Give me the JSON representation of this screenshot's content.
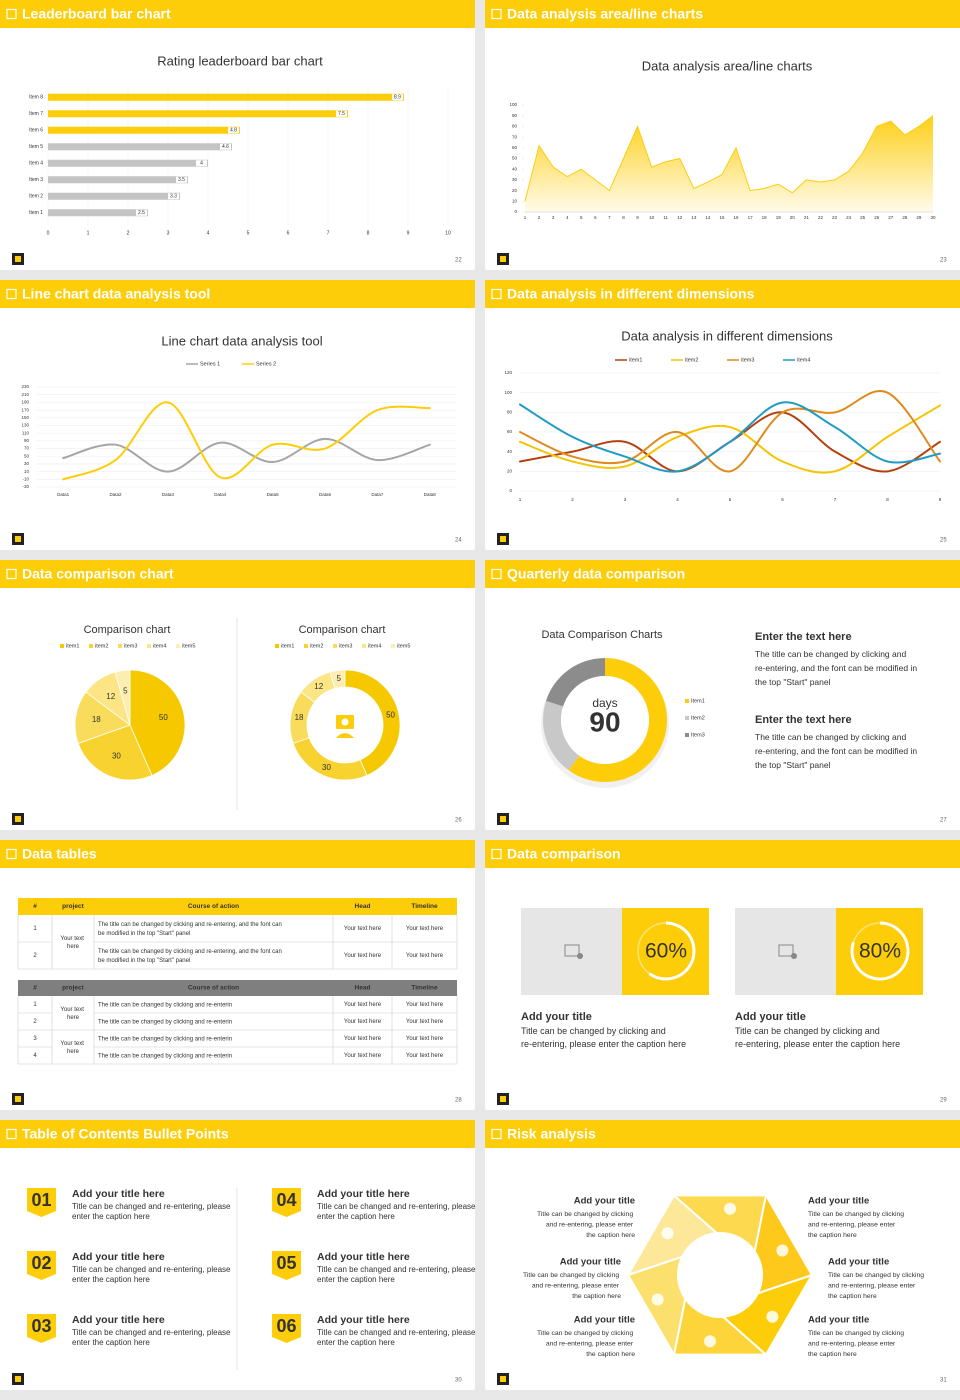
{
  "slides": [
    {
      "header": "Leaderboard bar chart",
      "page": 22,
      "chart_data": {
        "type": "hbar",
        "title": "Rating leaderboard bar chart",
        "categories": [
          "Item 8",
          "Item 7",
          "Item 6",
          "Item 5",
          "Item 4",
          "Item 3",
          "Item 2",
          "Item 1"
        ],
        "values": [
          8.9,
          7.5,
          4.8,
          4.6,
          4,
          3.5,
          3.3,
          2.5
        ],
        "colors": [
          "#fecd0a",
          "#fecd0a",
          "#fecd0a",
          "#c4c4c4",
          "#c4c4c4",
          "#c4c4c4",
          "#c4c4c4",
          "#c4c4c4"
        ],
        "xlim": [
          0,
          10
        ],
        "xticks": [
          0,
          1,
          2,
          3,
          4,
          5,
          6,
          7,
          8,
          9,
          10
        ],
        "grid": true
      }
    },
    {
      "header": "Data analysis area/line charts",
      "page": 23,
      "chart_data": {
        "type": "area",
        "title": "Data analysis area/line charts",
        "x": [
          1,
          2,
          3,
          4,
          5,
          6,
          7,
          8,
          9,
          10,
          11,
          12,
          13,
          14,
          15,
          16,
          17,
          18,
          19,
          20,
          21,
          22,
          23,
          24,
          25,
          26,
          27,
          28,
          29,
          30
        ],
        "values": [
          10,
          62,
          42,
          33,
          40,
          30,
          20,
          50,
          80,
          42,
          47,
          50,
          22,
          28,
          35,
          60,
          20,
          22,
          26,
          18,
          30,
          28,
          30,
          38,
          55,
          80,
          85,
          72,
          80,
          90
        ],
        "color": "#fecd0a",
        "xlim": [
          1,
          30
        ],
        "xticks": [
          1,
          2,
          3,
          4,
          5,
          6,
          7,
          8,
          9,
          10,
          11,
          12,
          13,
          14,
          15,
          16,
          17,
          18,
          19,
          20,
          21,
          22,
          23,
          24,
          25,
          26,
          27,
          28,
          29,
          30
        ],
        "ylim": [
          0,
          100
        ],
        "yticks": [
          0,
          10,
          20,
          30,
          40,
          50,
          60,
          70,
          80,
          90,
          100
        ],
        "grid": false
      }
    },
    {
      "header": "Line chart data analysis tool",
      "page": 24,
      "chart_data": {
        "type": "line",
        "title": "Line chart data analysis tool",
        "categories": [
          "Data1",
          "Data2",
          "Data3",
          "Data4",
          "Data5",
          "Data6",
          "Data7",
          "Data8"
        ],
        "series": [
          {
            "name": "Series 1",
            "color": "#a6a6a6",
            "values": [
              45,
              80,
              10,
              85,
              35,
              95,
              40,
              80
            ]
          },
          {
            "name": "Series 2",
            "color": "#fecd0a",
            "values": [
              -10,
              40,
              190,
              -5,
              80,
              70,
              170,
              175
            ]
          }
        ],
        "ylim": [
          -30,
          230
        ],
        "yticks": [
          -30,
          -10,
          10,
          30,
          50,
          70,
          90,
          110,
          130,
          150,
          170,
          190,
          210,
          230
        ],
        "grid": true
      }
    },
    {
      "header": "Data analysis in different dimensions",
      "page": 25,
      "chart_data": {
        "type": "line",
        "title": "Data analysis in different dimensions",
        "x": [
          1,
          2,
          3,
          4,
          5,
          6,
          7,
          8,
          9
        ],
        "series": [
          {
            "name": "item1",
            "color": "#b5400f",
            "values": [
              30,
              40,
              50,
              20,
              50,
              80,
              40,
              20,
              50
            ]
          },
          {
            "name": "item2",
            "color": "#f5c400",
            "values": [
              50,
              30,
              25,
              55,
              65,
              30,
              20,
              55,
              87
            ]
          },
          {
            "name": "item3",
            "color": "#e08a1e",
            "values": [
              60,
              35,
              30,
              60,
              20,
              80,
              80,
              100,
              30
            ]
          },
          {
            "name": "item4",
            "color": "#1f9bc4",
            "values": [
              88,
              55,
              35,
              20,
              50,
              90,
              65,
              30,
              38
            ]
          }
        ],
        "xlim": [
          1,
          9
        ],
        "xticks": [
          1,
          2,
          3,
          4,
          5,
          6,
          7,
          8,
          9
        ],
        "ylim": [
          0,
          120
        ],
        "yticks": [
          0,
          20,
          40,
          60,
          80,
          100,
          120
        ],
        "grid": true
      }
    },
    {
      "header": "Data comparison chart",
      "page": 26,
      "chart_data": [
        {
          "type": "pie",
          "title": "Comparison chart",
          "categories": [
            "item1",
            "item2",
            "item3",
            "item4",
            "item5"
          ],
          "values": [
            50,
            30,
            18,
            12,
            5
          ],
          "colors": [
            "#f5c800",
            "#f8d330",
            "#fadc5c",
            "#fbe585",
            "#fdeeb0"
          ],
          "legend": "top",
          "data_labels": true
        },
        {
          "type": "donut",
          "title": "Comparison chart",
          "categories": [
            "item1",
            "item2",
            "item3",
            "item4",
            "item5"
          ],
          "values": [
            50,
            30,
            18,
            12,
            5
          ],
          "colors": [
            "#f5c800",
            "#f8d330",
            "#fadc5c",
            "#fbe585",
            "#fdeeb0"
          ],
          "legend": "top",
          "data_labels": true
        }
      ]
    },
    {
      "header": "Quarterly data comparison",
      "page": 27,
      "chart_data": {
        "type": "donut",
        "title": "Data Comparison Charts",
        "center_label": "days",
        "center_value": 90,
        "categories": [
          "Item1",
          "Item2",
          "Item3"
        ],
        "values": [
          60,
          20,
          20
        ],
        "colors": [
          "#fecd0a",
          "#c8c8c8",
          "#8c8c8c"
        ],
        "legend": "right",
        "data_labels": false
      },
      "texts": [
        {
          "title": "Enter the text here",
          "body": "The title can be changed by clicking and re-entering, and the font can be modified in the top \"Start\" panel"
        },
        {
          "title": "Enter the text here",
          "body": "The title can be changed by clicking and re-entering, and the font can be modified in the top \"Start\" panel"
        }
      ]
    },
    {
      "header": "Data tables",
      "page": 28,
      "tables": [
        {
          "columns": [
            "#",
            "project",
            "Course of action",
            "Head",
            "Timeline"
          ],
          "header_color": "#fecd0a",
          "projects": [
            "Your text here"
          ],
          "rows": [
            [
              1,
              "The title can be changed by clicking and re-entering, and the font can be modified in the top \"Start\" panel",
              "Your text here",
              "Your text here"
            ],
            [
              2,
              "The title can be changed by clicking and re-entering, and the font can be modified in the top \"Start\" panel",
              "Your text here",
              "Your text here"
            ]
          ]
        },
        {
          "columns": [
            "#",
            "project",
            "Course of action",
            "Head",
            "Timeline"
          ],
          "header_color": "#7f7f7f",
          "projects": [
            "Your text here",
            "Your text here"
          ],
          "rows": [
            [
              1,
              "The title can be changed by clicking and re-enterin",
              "Your text here",
              "Your text here"
            ],
            [
              2,
              "The title can be changed by clicking and re-enterin",
              "Your text here",
              "Your text here"
            ],
            [
              3,
              "The title can be changed by clicking and re-enterin",
              "Your text here",
              "Your text here"
            ],
            [
              4,
              "The title can be changed by clicking and re-enterin",
              "Your text here",
              "Your text here"
            ]
          ]
        }
      ]
    },
    {
      "header": "Data comparison",
      "page": 29,
      "cards": [
        {
          "progress": {
            "value": 60,
            "label": "60%"
          },
          "title": "Add your title",
          "body": "Title can be changed by clicking and re-entering, please enter the caption here"
        },
        {
          "progress": {
            "value": 80,
            "label": "80%"
          },
          "title": "Add your title",
          "body": "Title can be changed by clicking and re-entering, please enter the caption here"
        }
      ]
    },
    {
      "header": "Table of Contents Bullet Points",
      "page": 30,
      "toc_items": [
        {
          "number": "01",
          "title": "Add your title here",
          "body": "Title can be changed and re-entering, please enter the caption here"
        },
        {
          "number": "02",
          "title": "Add your title here",
          "body": "Title can be changed and re-entering, please enter the caption here"
        },
        {
          "number": "03",
          "title": "Add your title here",
          "body": "Title can be changed and re-entering, please enter the caption here"
        },
        {
          "number": "04",
          "title": "Add your title here",
          "body": "Title can be changed and re-entering, please enter the caption here"
        },
        {
          "number": "05",
          "title": "Add your title here",
          "body": "Title can be changed and re-entering, please enter the caption here"
        },
        {
          "number": "06",
          "title": "Add your title here",
          "body": "Title can be changed and re-entering, please enter the caption here"
        }
      ]
    },
    {
      "header": "Risk analysis",
      "page": 31,
      "risk_items": [
        {
          "title": "Add your title",
          "body": "Title can be changed by clicking and re-entering, please enter the caption here"
        },
        {
          "title": "Add your title",
          "body": "Title can be changed by clicking and re-entering, please enter the caption here"
        },
        {
          "title": "Add your title",
          "body": "Title can be changed by clicking and re-entering, please enter the caption here"
        },
        {
          "title": "Add your title",
          "body": "Title can be changed by clicking and re-entering, please enter the caption here"
        },
        {
          "title": "Add your title",
          "body": "Title can be changed by clicking and re-entering, please enter the caption here"
        },
        {
          "title": "Add your title",
          "body": "Title can be changed by clicking and re-entering, please enter the caption here"
        }
      ]
    }
  ]
}
